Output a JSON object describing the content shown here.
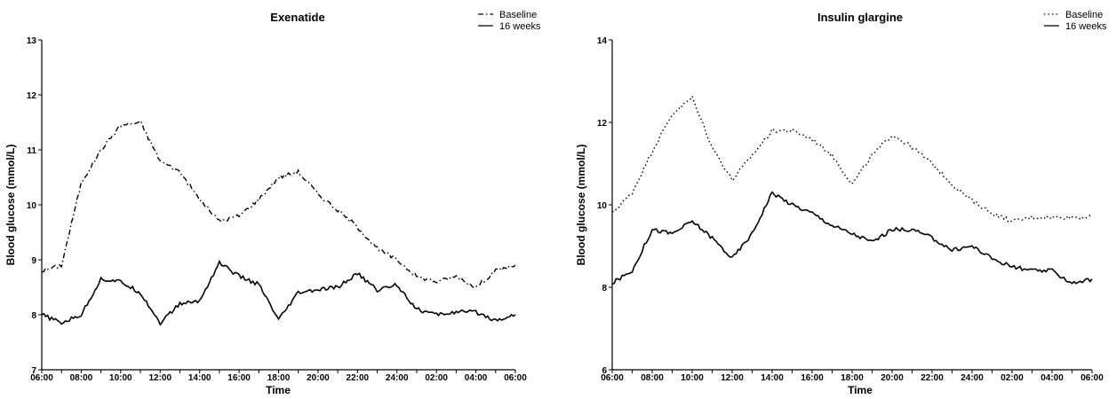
{
  "chart_data": [
    {
      "type": "line",
      "title": "Exenatide",
      "xlabel": "Time",
      "ylabel": "Blood glucose (mmol/L)",
      "categories": [
        "06:00",
        "07:00",
        "08:00",
        "09:00",
        "10:00",
        "11:00",
        "12:00",
        "13:00",
        "14:00",
        "15:00",
        "16:00",
        "17:00",
        "18:00",
        "19:00",
        "20:00",
        "21:00",
        "22:00",
        "23:00",
        "24:00",
        "01:00",
        "02:00",
        "03:00",
        "04:00",
        "05:00",
        "06:00"
      ],
      "x_tick_labels": [
        "06:00",
        "08:00",
        "10:00",
        "12:00",
        "14:00",
        "16:00",
        "18:00",
        "20:00",
        "22:00",
        "24:00",
        "02:00",
        "04:00",
        "06:00"
      ],
      "y_ticks": [
        7,
        8,
        9,
        10,
        11,
        12,
        13
      ],
      "ylim": [
        7,
        13
      ],
      "legend_position": "top-right",
      "series": [
        {
          "name": "Baseline",
          "style": "dash-dot",
          "values": [
            8.8,
            8.9,
            10.4,
            11.0,
            11.45,
            11.5,
            10.8,
            10.6,
            10.1,
            9.7,
            9.8,
            10.1,
            10.5,
            10.6,
            10.2,
            9.9,
            9.6,
            9.2,
            9.0,
            8.7,
            8.6,
            8.7,
            8.5,
            8.8,
            8.9
          ]
        },
        {
          "name": "16 weeks",
          "style": "solid",
          "values": [
            8.0,
            7.85,
            8.0,
            8.65,
            8.6,
            8.4,
            7.85,
            8.2,
            8.25,
            8.95,
            8.7,
            8.55,
            7.9,
            8.4,
            8.45,
            8.5,
            8.75,
            8.45,
            8.55,
            8.1,
            8.0,
            8.05,
            8.05,
            7.9,
            8.0
          ]
        }
      ]
    },
    {
      "type": "line",
      "title": "Insulin glargine",
      "xlabel": "Time",
      "ylabel": "Blood glucose (mmol/L)",
      "categories": [
        "06:00",
        "07:00",
        "08:00",
        "09:00",
        "10:00",
        "11:00",
        "12:00",
        "13:00",
        "14:00",
        "15:00",
        "16:00",
        "17:00",
        "18:00",
        "19:00",
        "20:00",
        "21:00",
        "22:00",
        "23:00",
        "24:00",
        "01:00",
        "02:00",
        "03:00",
        "04:00",
        "05:00",
        "06:00"
      ],
      "x_tick_labels": [
        "06:00",
        "08:00",
        "10:00",
        "12:00",
        "14:00",
        "16:00",
        "18:00",
        "20:00",
        "22:00",
        "24:00",
        "02:00",
        "04:00",
        "06:00"
      ],
      "y_ticks": [
        6,
        8,
        10,
        12,
        14
      ],
      "ylim": [
        6,
        14
      ],
      "legend_position": "top-right",
      "series": [
        {
          "name": "Baseline",
          "style": "dotted",
          "values": [
            9.8,
            10.3,
            11.3,
            12.2,
            12.6,
            11.4,
            10.6,
            11.2,
            11.8,
            11.8,
            11.6,
            11.2,
            10.5,
            11.2,
            11.7,
            11.4,
            11.0,
            10.5,
            10.1,
            9.8,
            9.6,
            9.7,
            9.7,
            9.7,
            9.7
          ]
        },
        {
          "name": "16 weeks",
          "style": "solid",
          "values": [
            8.1,
            8.4,
            9.4,
            9.3,
            9.6,
            9.2,
            8.7,
            9.3,
            10.3,
            10.0,
            9.8,
            9.5,
            9.3,
            9.1,
            9.4,
            9.4,
            9.2,
            8.9,
            9.0,
            8.7,
            8.5,
            8.4,
            8.4,
            8.1,
            8.2
          ]
        }
      ]
    }
  ]
}
